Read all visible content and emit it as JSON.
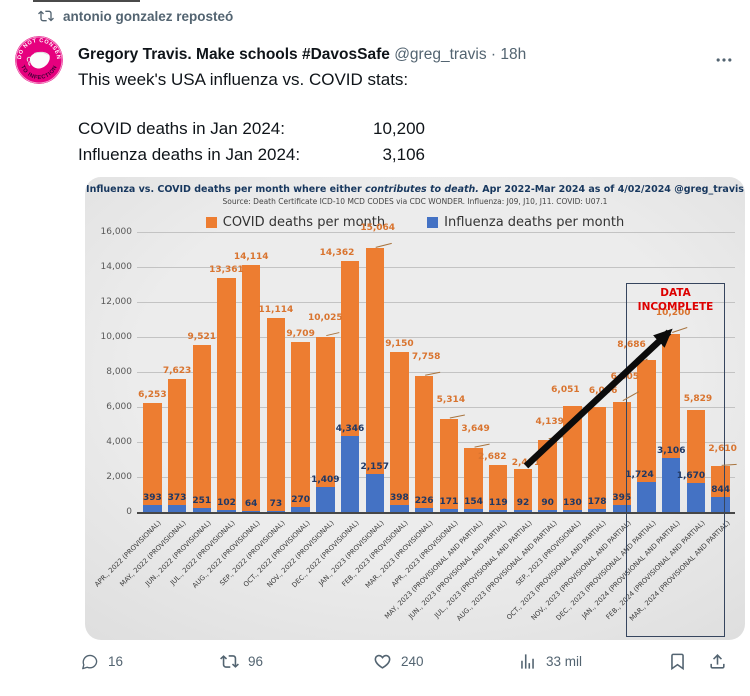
{
  "repost_banner": {
    "text": "antonio gonzalez reposteó"
  },
  "avatar": {
    "top_text": "I DO NOT CONSENT",
    "bottom_text": "TO INFECTION",
    "bg_color": "#e6007e"
  },
  "tweet": {
    "display_name": "Gregory Travis. Make schools #DavosSafe",
    "handle": "@greg_travis",
    "separator": "·",
    "timestamp": "18h",
    "body": "This week's USA influenza vs. COVID stats:",
    "stats": [
      {
        "label": "COVID deaths in Jan 2024:",
        "value": "10,200"
      },
      {
        "label": "Influenza deaths in Jan 2024:",
        "value": "3,106"
      }
    ]
  },
  "chart_data": {
    "type": "bar",
    "title_prefix": "Influenza vs. COVID deaths per month where either ",
    "title_italic": "contributes to death.",
    "title_suffix": "  Apr 2022-Mar 2024 as of 4/02/2024 @greg_travis",
    "subtitle": "Source: Death Certificate ICD-10 MCD CODES via CDC WONDER.  Influenza: J09, J10, J11.  COVID: U07.1",
    "legend_position": "top-center",
    "grid": true,
    "ylim": [
      0,
      16000
    ],
    "ytick_step": 2000,
    "categories": [
      "APR., 2022 (PROVISIONAL)",
      "MAY., 2022 (PROVISIONAL)",
      "JUN., 2022 (PROVISIONAL)",
      "JUL., 2022 (PROVISIONAL)",
      "AUG., 2022 (PROVISIONAL)",
      "SEP., 2022 (PROVISIONAL)",
      "OCT., 2022 (PROVISIONAL)",
      "NOV., 2022 (PROVISIONAL)",
      "DEC., 2022 (PROVISIONAL)",
      "JAN., 2023 (PROVISIONAL)",
      "FEB., 2023 (PROVISIONAL)",
      "MAR., 2023 (PROVISIONAL)",
      "APR., 2023 (PROVISIONAL)",
      "MAY, 2023 (PROVISIONAL AND PARTIAL)",
      "JUN., 2023 (PROVISIONAL AND PARTIAL)",
      "JUL., 2023 (PROVISIONAL AND PARTIAL)",
      "AUG., 2023 (PROVISIONAL AND PARTIAL)",
      "SEP., 2023 (PROVISIONAL)",
      "OCT., 2023 (PROVISIONAL AND PARTIAL)",
      "NOV., 2023 (PROVISIONAL AND PARTIAL)",
      "DEC., 2023 (PROVISIONAL AND PARTIAL)",
      "JAN., 2024 (PROVISIONAL AND PARTIAL)",
      "FEB., 2024 (PROVISIONAL AND PARTIAL)",
      "MAR., 2024 (PROVISIONAL AND PARTIAL)"
    ],
    "series": [
      {
        "name": "COVID deaths per month",
        "color": "#ED7D31",
        "values": [
          6253,
          7623,
          9521,
          13361,
          14114,
          11114,
          9709,
          10025,
          14362,
          15064,
          9150,
          7758,
          5314,
          3649,
          2682,
          2441,
          4139,
          6051,
          6006,
          6305,
          8686,
          10200,
          5829,
          2610
        ]
      },
      {
        "name": "Influenza deaths per month",
        "color": "#4472C4",
        "values": [
          393,
          373,
          251,
          102,
          64,
          73,
          270,
          1409,
          4346,
          2157,
          398,
          226,
          171,
          154,
          119,
          92,
          90,
          130,
          178,
          395,
          1724,
          3106,
          1670,
          844
        ]
      }
    ],
    "annotation": {
      "line1": "DATA",
      "line2": "INCOMPLETE",
      "color": "#dd0000",
      "box_from_index": 20,
      "box_to_index": 23
    },
    "arrow": {
      "from_index": 15,
      "to_index": 21
    },
    "covid_label_offsets": {
      "7": [
        0,
        -11
      ],
      "8": [
        -13,
        0
      ],
      "9": [
        3,
        -12
      ],
      "11": [
        2,
        -11
      ],
      "12": [
        2,
        -11
      ],
      "13": [
        2,
        -11
      ],
      "14": [
        -6,
        0
      ],
      "15": [
        3,
        2
      ],
      "16": [
        2,
        -10
      ],
      "17": [
        -7,
        -8
      ],
      "18": [
        6,
        -8
      ],
      "19": [
        3,
        -17
      ],
      "20": [
        -15,
        -7
      ],
      "21": [
        2,
        -13
      ],
      "22": [
        2,
        -3
      ],
      "23": [
        2,
        -9
      ]
    },
    "covid_label_leaders": [
      7,
      9,
      11,
      12,
      13,
      16,
      19,
      20,
      21,
      23
    ],
    "flu_label_offsets": {
      "20": [
        -7,
        0
      ],
      "22": [
        -5,
        0
      ]
    }
  },
  "engagement": {
    "replies": "16",
    "reposts": "96",
    "likes": "240",
    "views": "33 mil"
  }
}
